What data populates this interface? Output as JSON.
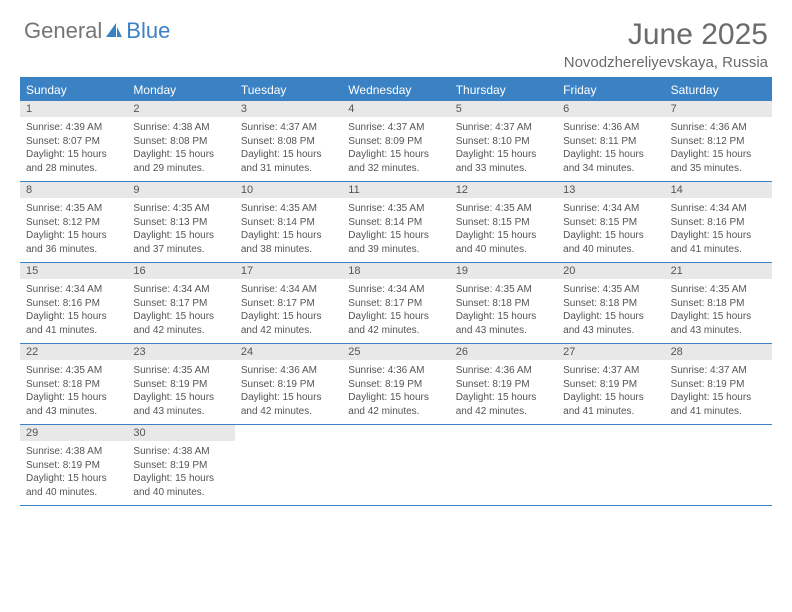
{
  "logo": {
    "general": "General",
    "blue": "Blue"
  },
  "title": "June 2025",
  "location": "Novodzhereliyevskaya, Russia",
  "header_bg": "#3b82c4",
  "dow": [
    "Sunday",
    "Monday",
    "Tuesday",
    "Wednesday",
    "Thursday",
    "Friday",
    "Saturday"
  ],
  "weeks": [
    [
      {
        "n": "1",
        "sr": "Sunrise: 4:39 AM",
        "ss": "Sunset: 8:07 PM",
        "d1": "Daylight: 15 hours",
        "d2": "and 28 minutes."
      },
      {
        "n": "2",
        "sr": "Sunrise: 4:38 AM",
        "ss": "Sunset: 8:08 PM",
        "d1": "Daylight: 15 hours",
        "d2": "and 29 minutes."
      },
      {
        "n": "3",
        "sr": "Sunrise: 4:37 AM",
        "ss": "Sunset: 8:08 PM",
        "d1": "Daylight: 15 hours",
        "d2": "and 31 minutes."
      },
      {
        "n": "4",
        "sr": "Sunrise: 4:37 AM",
        "ss": "Sunset: 8:09 PM",
        "d1": "Daylight: 15 hours",
        "d2": "and 32 minutes."
      },
      {
        "n": "5",
        "sr": "Sunrise: 4:37 AM",
        "ss": "Sunset: 8:10 PM",
        "d1": "Daylight: 15 hours",
        "d2": "and 33 minutes."
      },
      {
        "n": "6",
        "sr": "Sunrise: 4:36 AM",
        "ss": "Sunset: 8:11 PM",
        "d1": "Daylight: 15 hours",
        "d2": "and 34 minutes."
      },
      {
        "n": "7",
        "sr": "Sunrise: 4:36 AM",
        "ss": "Sunset: 8:12 PM",
        "d1": "Daylight: 15 hours",
        "d2": "and 35 minutes."
      }
    ],
    [
      {
        "n": "8",
        "sr": "Sunrise: 4:35 AM",
        "ss": "Sunset: 8:12 PM",
        "d1": "Daylight: 15 hours",
        "d2": "and 36 minutes."
      },
      {
        "n": "9",
        "sr": "Sunrise: 4:35 AM",
        "ss": "Sunset: 8:13 PM",
        "d1": "Daylight: 15 hours",
        "d2": "and 37 minutes."
      },
      {
        "n": "10",
        "sr": "Sunrise: 4:35 AM",
        "ss": "Sunset: 8:14 PM",
        "d1": "Daylight: 15 hours",
        "d2": "and 38 minutes."
      },
      {
        "n": "11",
        "sr": "Sunrise: 4:35 AM",
        "ss": "Sunset: 8:14 PM",
        "d1": "Daylight: 15 hours",
        "d2": "and 39 minutes."
      },
      {
        "n": "12",
        "sr": "Sunrise: 4:35 AM",
        "ss": "Sunset: 8:15 PM",
        "d1": "Daylight: 15 hours",
        "d2": "and 40 minutes."
      },
      {
        "n": "13",
        "sr": "Sunrise: 4:34 AM",
        "ss": "Sunset: 8:15 PM",
        "d1": "Daylight: 15 hours",
        "d2": "and 40 minutes."
      },
      {
        "n": "14",
        "sr": "Sunrise: 4:34 AM",
        "ss": "Sunset: 8:16 PM",
        "d1": "Daylight: 15 hours",
        "d2": "and 41 minutes."
      }
    ],
    [
      {
        "n": "15",
        "sr": "Sunrise: 4:34 AM",
        "ss": "Sunset: 8:16 PM",
        "d1": "Daylight: 15 hours",
        "d2": "and 41 minutes."
      },
      {
        "n": "16",
        "sr": "Sunrise: 4:34 AM",
        "ss": "Sunset: 8:17 PM",
        "d1": "Daylight: 15 hours",
        "d2": "and 42 minutes."
      },
      {
        "n": "17",
        "sr": "Sunrise: 4:34 AM",
        "ss": "Sunset: 8:17 PM",
        "d1": "Daylight: 15 hours",
        "d2": "and 42 minutes."
      },
      {
        "n": "18",
        "sr": "Sunrise: 4:34 AM",
        "ss": "Sunset: 8:17 PM",
        "d1": "Daylight: 15 hours",
        "d2": "and 42 minutes."
      },
      {
        "n": "19",
        "sr": "Sunrise: 4:35 AM",
        "ss": "Sunset: 8:18 PM",
        "d1": "Daylight: 15 hours",
        "d2": "and 43 minutes."
      },
      {
        "n": "20",
        "sr": "Sunrise: 4:35 AM",
        "ss": "Sunset: 8:18 PM",
        "d1": "Daylight: 15 hours",
        "d2": "and 43 minutes."
      },
      {
        "n": "21",
        "sr": "Sunrise: 4:35 AM",
        "ss": "Sunset: 8:18 PM",
        "d1": "Daylight: 15 hours",
        "d2": "and 43 minutes."
      }
    ],
    [
      {
        "n": "22",
        "sr": "Sunrise: 4:35 AM",
        "ss": "Sunset: 8:18 PM",
        "d1": "Daylight: 15 hours",
        "d2": "and 43 minutes."
      },
      {
        "n": "23",
        "sr": "Sunrise: 4:35 AM",
        "ss": "Sunset: 8:19 PM",
        "d1": "Daylight: 15 hours",
        "d2": "and 43 minutes."
      },
      {
        "n": "24",
        "sr": "Sunrise: 4:36 AM",
        "ss": "Sunset: 8:19 PM",
        "d1": "Daylight: 15 hours",
        "d2": "and 42 minutes."
      },
      {
        "n": "25",
        "sr": "Sunrise: 4:36 AM",
        "ss": "Sunset: 8:19 PM",
        "d1": "Daylight: 15 hours",
        "d2": "and 42 minutes."
      },
      {
        "n": "26",
        "sr": "Sunrise: 4:36 AM",
        "ss": "Sunset: 8:19 PM",
        "d1": "Daylight: 15 hours",
        "d2": "and 42 minutes."
      },
      {
        "n": "27",
        "sr": "Sunrise: 4:37 AM",
        "ss": "Sunset: 8:19 PM",
        "d1": "Daylight: 15 hours",
        "d2": "and 41 minutes."
      },
      {
        "n": "28",
        "sr": "Sunrise: 4:37 AM",
        "ss": "Sunset: 8:19 PM",
        "d1": "Daylight: 15 hours",
        "d2": "and 41 minutes."
      }
    ],
    [
      {
        "n": "29",
        "sr": "Sunrise: 4:38 AM",
        "ss": "Sunset: 8:19 PM",
        "d1": "Daylight: 15 hours",
        "d2": "and 40 minutes."
      },
      {
        "n": "30",
        "sr": "Sunrise: 4:38 AM",
        "ss": "Sunset: 8:19 PM",
        "d1": "Daylight: 15 hours",
        "d2": "and 40 minutes."
      },
      null,
      null,
      null,
      null,
      null
    ]
  ]
}
